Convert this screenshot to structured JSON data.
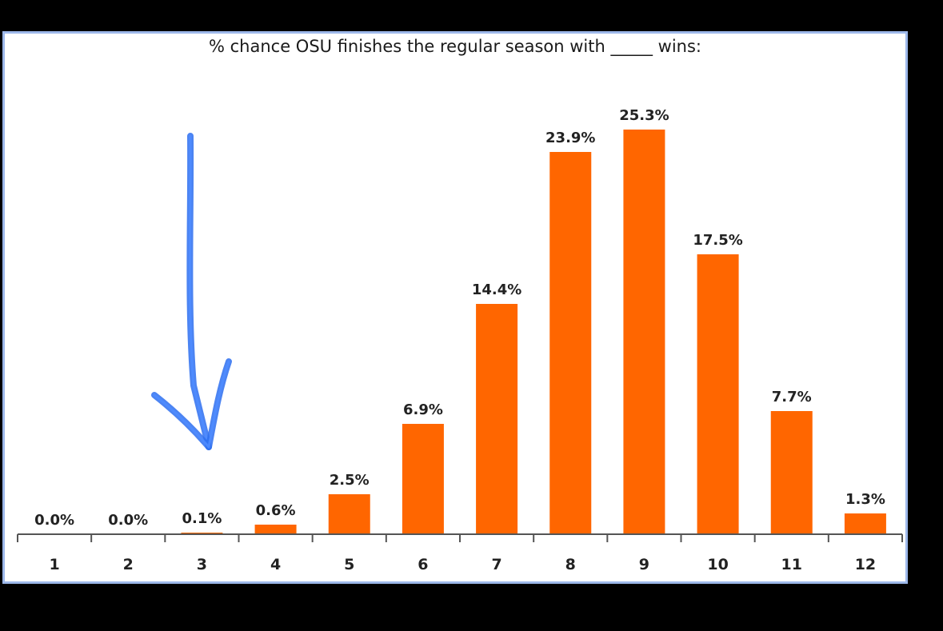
{
  "chart_data": {
    "type": "bar",
    "title": "% chance OSU finishes the regular season with _____ wins:",
    "xlabel": "",
    "ylabel": "",
    "categories": [
      "1",
      "2",
      "3",
      "4",
      "5",
      "6",
      "7",
      "8",
      "9",
      "10",
      "11",
      "12"
    ],
    "values": [
      0.0,
      0.0,
      0.1,
      0.6,
      2.5,
      6.9,
      14.4,
      23.9,
      25.3,
      17.5,
      7.7,
      1.3
    ],
    "data_labels": [
      "0.0%",
      "0.0%",
      "0.1%",
      "0.6%",
      "2.5%",
      "6.9%",
      "14.4%",
      "23.9%",
      "25.3%",
      "17.5%",
      "7.7%",
      "1.3%"
    ],
    "ylim": [
      0,
      25.3
    ],
    "grid": false,
    "legend": "none",
    "bar_color": "#ff6600",
    "annotation": {
      "type": "hand-drawn arrow",
      "points_to": "3",
      "color": "#2d6ff0"
    }
  },
  "colors": {
    "background": "#000000",
    "plot_background": "#ffffff",
    "frame_border": "#9db8ea",
    "bar": "#ff6600",
    "arrow": "#2d6ff0"
  }
}
